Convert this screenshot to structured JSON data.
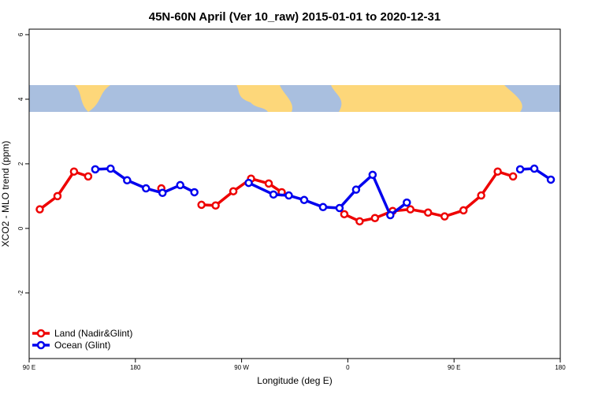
{
  "chart_data": {
    "type": "line",
    "title": "45N-60N April (Ver 10_raw)   2015-01-01 to 2020-12-31",
    "x_label": "Longitude (deg E)",
    "y_label": "XCO2 - MLO trend (ppm)",
    "xlim": [
      90,
      540
    ],
    "ylim": [
      -4.03,
      6.17
    ],
    "xticks": [
      {
        "value": 90,
        "label": "90 E"
      },
      180,
      {
        "value": 270,
        "label": "90 W"
      },
      {
        "value": 360,
        "label": "0"
      },
      {
        "value": 450,
        "label": "90 E"
      },
      {
        "value": 540,
        "label": "180"
      }
    ],
    "yticks": [
      -2,
      0,
      2,
      4,
      6
    ],
    "legend_position": "bottom-left",
    "series": [
      {
        "name": "Land (Nadir&Glint)",
        "color": "#ee0000",
        "x": [
          99,
          114,
          128,
          140,
          null,
          202,
          null,
          236,
          248,
          263,
          278,
          293,
          304,
          null,
          357,
          370,
          383,
          398,
          413,
          428,
          442,
          458,
          473,
          487,
          500
        ],
        "values": [
          0.59,
          1.0,
          1.76,
          1.61,
          null,
          1.24,
          null,
          0.73,
          0.71,
          1.15,
          1.54,
          1.39,
          1.12,
          null,
          0.44,
          0.22,
          0.32,
          0.54,
          0.59,
          0.49,
          0.37,
          0.56,
          1.02,
          1.76,
          1.61
        ]
      },
      {
        "name": "Ocean (Glint)",
        "color": "#0000ee",
        "x": [
          146,
          159,
          173,
          189,
          203,
          218,
          230,
          null,
          276,
          297,
          310,
          323,
          339,
          353,
          367,
          381,
          396,
          410,
          null,
          506,
          518,
          532
        ],
        "values": [
          1.83,
          1.85,
          1.49,
          1.24,
          1.1,
          1.34,
          1.12,
          null,
          1.41,
          1.05,
          1.02,
          0.88,
          0.66,
          0.63,
          1.2,
          1.66,
          0.41,
          0.8,
          null,
          1.83,
          1.85,
          1.51
        ]
      }
    ]
  }
}
